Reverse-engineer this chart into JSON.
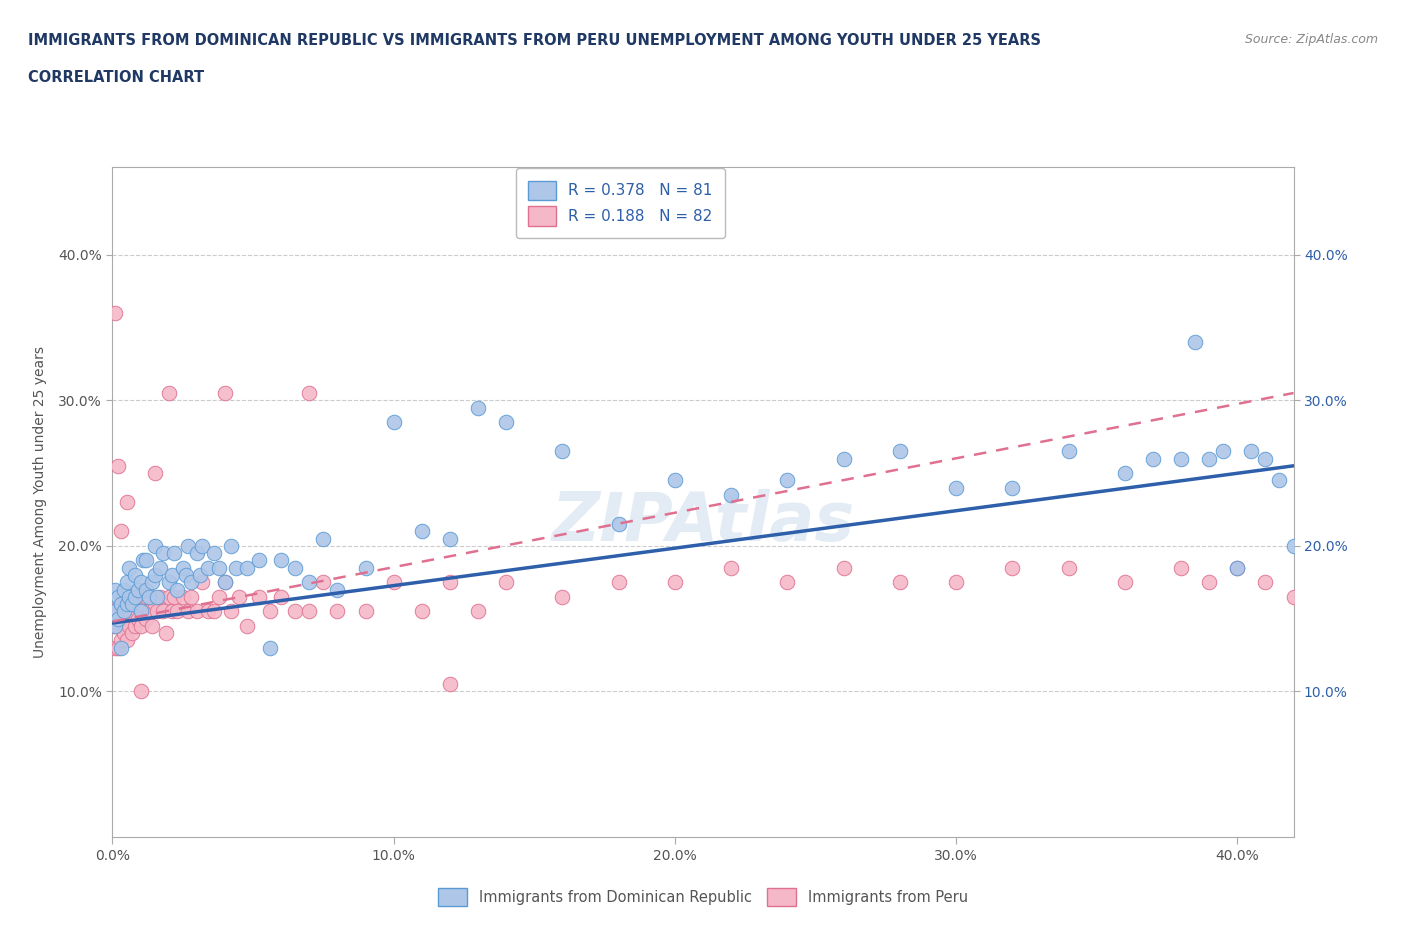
{
  "title_line1": "IMMIGRANTS FROM DOMINICAN REPUBLIC VS IMMIGRANTS FROM PERU UNEMPLOYMENT AMONG YOUTH UNDER 25 YEARS",
  "title_line2": "CORRELATION CHART",
  "source": "Source: ZipAtlas.com",
  "watermark": "ZIPAtlas",
  "ylabel": "Unemployment Among Youth under 25 years",
  "xlim": [
    0.0,
    0.42
  ],
  "ylim": [
    0.0,
    0.46
  ],
  "xticks": [
    0.0,
    0.1,
    0.2,
    0.3,
    0.4
  ],
  "yticks": [
    0.1,
    0.2,
    0.3,
    0.4
  ],
  "xtick_labels": [
    "0.0%",
    "10.0%",
    "20.0%",
    "30.0%",
    "40.0%"
  ],
  "ytick_labels": [
    "10.0%",
    "20.0%",
    "30.0%",
    "40.0%"
  ],
  "right_ytick_labels": [
    "10.0%",
    "20.0%",
    "30.0%",
    "40.0%"
  ],
  "legend_label1": "R = 0.378   N = 81",
  "legend_label2": "R = 0.188   N = 82",
  "series1_label": "Immigrants from Dominican Republic",
  "series1_color": "#aec6e8",
  "series1_edge_color": "#5b9bd5",
  "series2_label": "Immigrants from Peru",
  "series2_color": "#f4b8c8",
  "series2_edge_color": "#e07090",
  "trend1_color": "#2e5faa",
  "trend2_color": "#e07090",
  "trend2_dash": "dashed",
  "text_color": "#4472c4",
  "title_color": "#1f3864",
  "axis_label_color": "#555555",
  "grid_color": "#cccccc",
  "background_color": "#ffffff",
  "series1_x": [
    0.001,
    0.001,
    0.001,
    0.002,
    0.002,
    0.003,
    0.003,
    0.004,
    0.004,
    0.005,
    0.005,
    0.006,
    0.006,
    0.007,
    0.008,
    0.008,
    0.009,
    0.01,
    0.01,
    0.011,
    0.012,
    0.012,
    0.013,
    0.014,
    0.015,
    0.015,
    0.016,
    0.017,
    0.018,
    0.02,
    0.021,
    0.022,
    0.023,
    0.025,
    0.026,
    0.027,
    0.028,
    0.03,
    0.031,
    0.032,
    0.034,
    0.036,
    0.038,
    0.04,
    0.042,
    0.044,
    0.048,
    0.052,
    0.056,
    0.06,
    0.065,
    0.07,
    0.075,
    0.08,
    0.09,
    0.1,
    0.11,
    0.12,
    0.13,
    0.14,
    0.16,
    0.18,
    0.2,
    0.22,
    0.24,
    0.26,
    0.28,
    0.3,
    0.32,
    0.34,
    0.36,
    0.37,
    0.38,
    0.385,
    0.39,
    0.395,
    0.4,
    0.405,
    0.41,
    0.415,
    0.42
  ],
  "series1_y": [
    0.145,
    0.155,
    0.17,
    0.15,
    0.165,
    0.13,
    0.16,
    0.17,
    0.155,
    0.16,
    0.175,
    0.165,
    0.185,
    0.16,
    0.165,
    0.18,
    0.17,
    0.155,
    0.175,
    0.19,
    0.17,
    0.19,
    0.165,
    0.175,
    0.18,
    0.2,
    0.165,
    0.185,
    0.195,
    0.175,
    0.18,
    0.195,
    0.17,
    0.185,
    0.18,
    0.2,
    0.175,
    0.195,
    0.18,
    0.2,
    0.185,
    0.195,
    0.185,
    0.175,
    0.2,
    0.185,
    0.185,
    0.19,
    0.13,
    0.19,
    0.185,
    0.175,
    0.205,
    0.17,
    0.185,
    0.285,
    0.21,
    0.205,
    0.295,
    0.285,
    0.265,
    0.215,
    0.245,
    0.235,
    0.245,
    0.26,
    0.265,
    0.24,
    0.24,
    0.265,
    0.25,
    0.26,
    0.26,
    0.34,
    0.26,
    0.265,
    0.185,
    0.265,
    0.26,
    0.245,
    0.2
  ],
  "series2_x": [
    0.0,
    0.0,
    0.001,
    0.001,
    0.001,
    0.002,
    0.002,
    0.003,
    0.003,
    0.003,
    0.004,
    0.004,
    0.005,
    0.005,
    0.006,
    0.006,
    0.007,
    0.007,
    0.008,
    0.008,
    0.009,
    0.01,
    0.01,
    0.011,
    0.012,
    0.012,
    0.013,
    0.014,
    0.015,
    0.016,
    0.017,
    0.018,
    0.019,
    0.02,
    0.021,
    0.022,
    0.023,
    0.025,
    0.027,
    0.028,
    0.03,
    0.032,
    0.034,
    0.036,
    0.038,
    0.04,
    0.042,
    0.045,
    0.048,
    0.052,
    0.056,
    0.06,
    0.065,
    0.07,
    0.075,
    0.08,
    0.09,
    0.1,
    0.11,
    0.12,
    0.13,
    0.14,
    0.16,
    0.18,
    0.2,
    0.22,
    0.24,
    0.26,
    0.28,
    0.3,
    0.32,
    0.34,
    0.36,
    0.38,
    0.39,
    0.4,
    0.41,
    0.42,
    0.005,
    0.01,
    0.015,
    0.02
  ],
  "series2_y": [
    0.145,
    0.155,
    0.13,
    0.145,
    0.155,
    0.13,
    0.145,
    0.135,
    0.15,
    0.16,
    0.14,
    0.155,
    0.135,
    0.155,
    0.145,
    0.16,
    0.14,
    0.16,
    0.145,
    0.165,
    0.15,
    0.145,
    0.16,
    0.165,
    0.15,
    0.165,
    0.155,
    0.145,
    0.16,
    0.155,
    0.165,
    0.155,
    0.14,
    0.165,
    0.155,
    0.165,
    0.155,
    0.165,
    0.155,
    0.165,
    0.155,
    0.175,
    0.155,
    0.155,
    0.165,
    0.175,
    0.155,
    0.165,
    0.145,
    0.165,
    0.155,
    0.165,
    0.155,
    0.155,
    0.175,
    0.155,
    0.155,
    0.175,
    0.155,
    0.175,
    0.155,
    0.175,
    0.165,
    0.175,
    0.175,
    0.185,
    0.175,
    0.185,
    0.175,
    0.175,
    0.185,
    0.185,
    0.175,
    0.185,
    0.175,
    0.185,
    0.175,
    0.165,
    0.23,
    0.1,
    0.25,
    0.305
  ],
  "peru_outliers_x": [
    0.001,
    0.002,
    0.003,
    0.04,
    0.07,
    0.12
  ],
  "peru_outliers_y": [
    0.36,
    0.255,
    0.21,
    0.305,
    0.305,
    0.105
  ],
  "trend1_x0": 0.0,
  "trend1_y0": 0.147,
  "trend1_x1": 0.42,
  "trend1_y1": 0.255,
  "trend2_x0": 0.0,
  "trend2_y0": 0.148,
  "trend2_x1": 0.42,
  "trend2_y1": 0.305
}
